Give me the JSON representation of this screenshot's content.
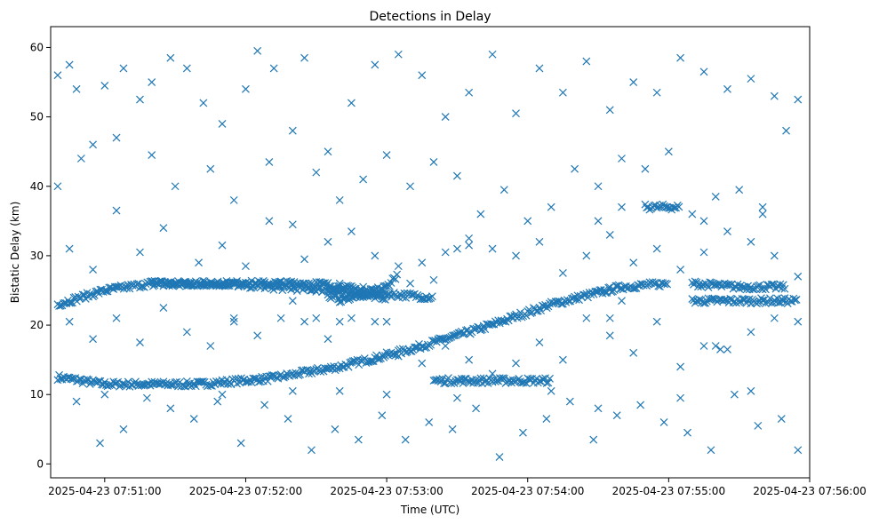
{
  "chart_data": {
    "type": "scatter",
    "title": "Detections in Delay",
    "xlabel": "Time (UTC)",
    "ylabel": "Bistatic Delay (km)",
    "x_ticks": [
      "2025-04-23 07:51:00",
      "2025-04-23 07:52:00",
      "2025-04-23 07:53:00",
      "2025-04-23 07:54:00",
      "2025-04-23 07:55:00",
      "2025-04-23 07:56:00"
    ],
    "y_ticks": [
      "0",
      "10",
      "20",
      "30",
      "40",
      "50",
      "60"
    ],
    "xlim": [
      "2025-04-23 07:50:37",
      "2025-04-23 07:56:00"
    ],
    "ylim": [
      -2,
      63
    ],
    "marker": "x",
    "color": "#1f77b4",
    "grid": false,
    "series": [
      {
        "tracks": [
          {
            "t": [
              "07:50:40",
              "07:51:00",
              "07:51:15",
              "07:51:40",
              "07:52:10",
              "07:52:40",
              "07:53:10",
              "07:53:40",
              "07:54:10",
              "07:54:40",
              "07:55:00"
            ],
            "y": [
              12.5,
              11.5,
              11.5,
              11.5,
              12.3,
              14,
              16.5,
              19.5,
              23,
              25.5,
              26
            ]
          },
          {
            "t": [
              "07:50:40",
              "07:51:00",
              "07:51:20",
              "07:51:50",
              "07:52:10",
              "07:52:40",
              "07:53:00"
            ],
            "y": [
              23,
              25,
              26,
              26,
              25.5,
              25,
              24
            ]
          },
          {
            "t": [
              "07:52:35",
              "07:53:00",
              "07:53:20"
            ],
            "y": [
              24,
              24.5,
              24
            ]
          },
          {
            "t": [
              "07:52:40",
              "07:53:00",
              "07:53:05"
            ],
            "y": [
              23.5,
              25.5,
              27.5
            ]
          },
          {
            "t": [
              "07:51:20",
              "07:51:50",
              "07:52:30",
              "07:52:50"
            ],
            "y": [
              26,
              26,
              26,
              25
            ]
          },
          {
            "t": [
              "07:53:20",
              "07:53:30",
              "07:53:40",
              "07:53:50",
              "07:54:10"
            ],
            "y": [
              12,
              12,
              12,
              12,
              12
            ]
          },
          {
            "t": [
              "07:55:10",
              "07:55:20",
              "07:55:40",
              "07:55:55"
            ],
            "y": [
              23.5,
              23.5,
              23.5,
              23.5
            ]
          },
          {
            "t": [
              "07:55:10",
              "07:55:30",
              "07:55:50"
            ],
            "y": [
              26,
              25.5,
              25.5
            ]
          },
          {
            "t": [
              "07:54:50",
              "07:55:05"
            ],
            "y": [
              37,
              37
            ]
          }
        ],
        "scatter": [
          [
            "07:50:40",
            56
          ],
          [
            "07:50:45",
            57.5
          ],
          [
            "07:50:48",
            54
          ],
          [
            "07:50:55",
            46
          ],
          [
            "07:51:00",
            54.5
          ],
          [
            "07:51:08",
            57
          ],
          [
            "07:51:15",
            52.5
          ],
          [
            "07:51:20",
            55
          ],
          [
            "07:51:28",
            58.5
          ],
          [
            "07:51:35",
            57
          ],
          [
            "07:51:42",
            52
          ],
          [
            "07:51:50",
            49
          ],
          [
            "07:52:00",
            54
          ],
          [
            "07:52:05",
            59.5
          ],
          [
            "07:52:12",
            57
          ],
          [
            "07:52:20",
            48
          ],
          [
            "07:52:25",
            58.5
          ],
          [
            "07:52:35",
            45
          ],
          [
            "07:52:45",
            52
          ],
          [
            "07:52:55",
            57.5
          ],
          [
            "07:53:05",
            59
          ],
          [
            "07:53:15",
            56
          ],
          [
            "07:53:25",
            50
          ],
          [
            "07:53:35",
            53.5
          ],
          [
            "07:53:45",
            59
          ],
          [
            "07:53:55",
            50.5
          ],
          [
            "07:54:05",
            57
          ],
          [
            "07:54:15",
            53.5
          ],
          [
            "07:54:25",
            58
          ],
          [
            "07:54:35",
            51
          ],
          [
            "07:54:45",
            55
          ],
          [
            "07:54:55",
            53.5
          ],
          [
            "07:55:05",
            58.5
          ],
          [
            "07:55:15",
            56.5
          ],
          [
            "07:55:25",
            54
          ],
          [
            "07:55:35",
            55.5
          ],
          [
            "07:55:45",
            53
          ],
          [
            "07:55:55",
            52.5
          ],
          [
            "07:50:40",
            40
          ],
          [
            "07:50:50",
            44
          ],
          [
            "07:51:05",
            47
          ],
          [
            "07:51:20",
            44.5
          ],
          [
            "07:51:30",
            40
          ],
          [
            "07:51:45",
            42.5
          ],
          [
            "07:51:55",
            38
          ],
          [
            "07:52:10",
            43.5
          ],
          [
            "07:52:20",
            34.5
          ],
          [
            "07:52:30",
            42
          ],
          [
            "07:52:40",
            38
          ],
          [
            "07:52:50",
            41
          ],
          [
            "07:53:00",
            44.5
          ],
          [
            "07:53:10",
            40
          ],
          [
            "07:53:20",
            43.5
          ],
          [
            "07:53:30",
            41.5
          ],
          [
            "07:53:40",
            36
          ],
          [
            "07:53:50",
            39.5
          ],
          [
            "07:54:00",
            35
          ],
          [
            "07:54:10",
            37
          ],
          [
            "07:54:20",
            42.5
          ],
          [
            "07:54:30",
            40
          ],
          [
            "07:54:40",
            44
          ],
          [
            "07:54:50",
            42.5
          ],
          [
            "07:55:00",
            45
          ],
          [
            "07:55:10",
            36
          ],
          [
            "07:55:20",
            38.5
          ],
          [
            "07:55:30",
            39.5
          ],
          [
            "07:55:40",
            37
          ],
          [
            "07:55:50",
            48
          ],
          [
            "07:50:45",
            31
          ],
          [
            "07:50:55",
            28
          ],
          [
            "07:51:05",
            36.5
          ],
          [
            "07:51:15",
            30.5
          ],
          [
            "07:51:25",
            34
          ],
          [
            "07:51:40",
            29
          ],
          [
            "07:51:50",
            31.5
          ],
          [
            "07:52:00",
            28.5
          ],
          [
            "07:52:10",
            35
          ],
          [
            "07:52:25",
            29.5
          ],
          [
            "07:52:35",
            32
          ],
          [
            "07:52:45",
            33.5
          ],
          [
            "07:52:55",
            30
          ],
          [
            "07:53:05",
            28.5
          ],
          [
            "07:53:15",
            29
          ],
          [
            "07:53:25",
            30.5
          ],
          [
            "07:53:35",
            32.5
          ],
          [
            "07:53:45",
            31
          ],
          [
            "07:53:55",
            30
          ],
          [
            "07:54:05",
            32
          ],
          [
            "07:54:15",
            27.5
          ],
          [
            "07:54:25",
            30
          ],
          [
            "07:54:35",
            33
          ],
          [
            "07:54:45",
            29
          ],
          [
            "07:54:55",
            31
          ],
          [
            "07:55:05",
            28
          ],
          [
            "07:55:15",
            30.5
          ],
          [
            "07:55:25",
            33.5
          ],
          [
            "07:55:35",
            32
          ],
          [
            "07:55:45",
            30
          ],
          [
            "07:55:55",
            27
          ],
          [
            "07:50:45",
            20.5
          ],
          [
            "07:50:55",
            18
          ],
          [
            "07:51:05",
            21
          ],
          [
            "07:51:15",
            17.5
          ],
          [
            "07:51:25",
            22.5
          ],
          [
            "07:51:35",
            19
          ],
          [
            "07:51:45",
            17
          ],
          [
            "07:51:55",
            20.5
          ],
          [
            "07:52:05",
            18.5
          ],
          [
            "07:52:15",
            21
          ],
          [
            "07:52:25",
            20.5
          ],
          [
            "07:52:35",
            18
          ],
          [
            "07:52:45",
            21
          ],
          [
            "07:52:55",
            20.5
          ],
          [
            "07:53:05",
            15.5
          ],
          [
            "07:53:15",
            14.5
          ],
          [
            "07:53:25",
            17
          ],
          [
            "07:53:35",
            15
          ],
          [
            "07:53:45",
            13
          ],
          [
            "07:53:55",
            14.5
          ],
          [
            "07:54:05",
            17.5
          ],
          [
            "07:54:15",
            15
          ],
          [
            "07:54:25",
            21
          ],
          [
            "07:54:35",
            18.5
          ],
          [
            "07:54:45",
            16
          ],
          [
            "07:54:55",
            20.5
          ],
          [
            "07:55:05",
            14
          ],
          [
            "07:55:15",
            17
          ],
          [
            "07:55:25",
            16.5
          ],
          [
            "07:55:35",
            19
          ],
          [
            "07:55:45",
            21
          ],
          [
            "07:55:55",
            20.5
          ],
          [
            "07:50:48",
            9
          ],
          [
            "07:50:58",
            3
          ],
          [
            "07:51:08",
            5
          ],
          [
            "07:51:18",
            9.5
          ],
          [
            "07:51:28",
            8
          ],
          [
            "07:51:38",
            6.5
          ],
          [
            "07:51:48",
            9
          ],
          [
            "07:51:58",
            3
          ],
          [
            "07:52:08",
            8.5
          ],
          [
            "07:52:18",
            6.5
          ],
          [
            "07:52:28",
            2
          ],
          [
            "07:52:38",
            5
          ],
          [
            "07:52:48",
            3.5
          ],
          [
            "07:52:58",
            7
          ],
          [
            "07:53:08",
            3.5
          ],
          [
            "07:53:18",
            6
          ],
          [
            "07:53:28",
            5
          ],
          [
            "07:53:38",
            8
          ],
          [
            "07:53:48",
            1
          ],
          [
            "07:53:58",
            4.5
          ],
          [
            "07:54:08",
            6.5
          ],
          [
            "07:54:18",
            9
          ],
          [
            "07:54:28",
            3.5
          ],
          [
            "07:54:38",
            7
          ],
          [
            "07:54:48",
            8.5
          ],
          [
            "07:54:58",
            6
          ],
          [
            "07:55:08",
            4.5
          ],
          [
            "07:55:18",
            2
          ],
          [
            "07:55:28",
            10
          ],
          [
            "07:55:38",
            5.5
          ],
          [
            "07:55:48",
            6.5
          ],
          [
            "07:55:55",
            2
          ],
          [
            "07:51:00",
            10
          ],
          [
            "07:51:50",
            10
          ],
          [
            "07:52:20",
            10.5
          ],
          [
            "07:52:40",
            10.5
          ],
          [
            "07:53:00",
            10
          ],
          [
            "07:53:30",
            9.5
          ],
          [
            "07:54:10",
            10.5
          ],
          [
            "07:54:30",
            8
          ],
          [
            "07:55:05",
            9.5
          ],
          [
            "07:55:35",
            10.5
          ],
          [
            "07:52:40",
            26
          ],
          [
            "07:52:50",
            25.5
          ],
          [
            "07:53:10",
            26
          ],
          [
            "07:53:20",
            26.5
          ],
          [
            "07:54:30",
            35
          ],
          [
            "07:54:40",
            37
          ],
          [
            "07:55:15",
            35
          ],
          [
            "07:55:40",
            36
          ],
          [
            "07:54:35",
            21
          ],
          [
            "07:54:40",
            23.5
          ],
          [
            "07:55:20",
            17
          ],
          [
            "07:55:22",
            16.5
          ],
          [
            "07:52:30",
            21
          ],
          [
            "07:52:40",
            20.5
          ],
          [
            "07:53:00",
            20.5
          ],
          [
            "07:51:55",
            21
          ],
          [
            "07:52:20",
            23.5
          ],
          [
            "07:53:30",
            31
          ],
          [
            "07:53:35",
            31.5
          ]
        ]
      }
    ]
  }
}
